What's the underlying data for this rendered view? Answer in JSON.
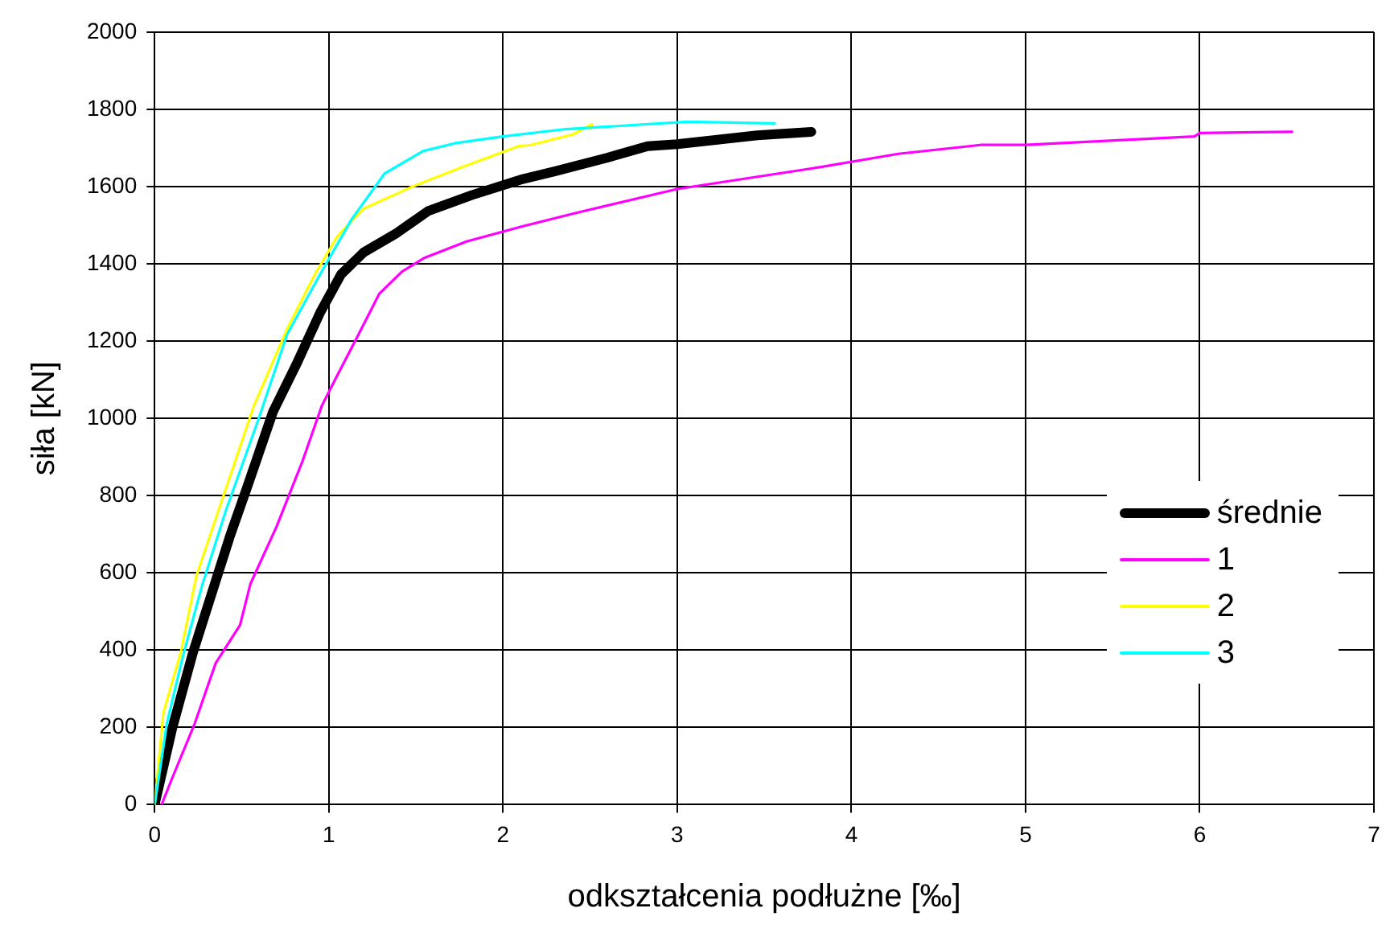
{
  "chart_data": {
    "type": "line",
    "xlabel": "odkształcenia podłużne [‰]",
    "ylabel": "siła [kN]",
    "xlim": [
      0,
      7
    ],
    "xticks": [
      0,
      1,
      2,
      3,
      4,
      5,
      6,
      7
    ],
    "ylim": [
      0,
      2000
    ],
    "yticks": [
      0,
      200,
      400,
      600,
      800,
      1000,
      1200,
      1400,
      1600,
      1800,
      2000
    ],
    "grid": true,
    "legend": "bottom right",
    "marker": "none",
    "line_style": "solid",
    "series": [
      {
        "name": "średnie",
        "color": "#000000",
        "x": [
          0,
          0.1,
          0.22,
          0.32,
          0.43,
          0.54,
          0.68,
          0.82,
          0.95,
          1.07,
          1.2,
          1.39,
          1.57,
          1.82,
          2.1,
          2.3,
          2.6,
          2.83,
          3.0,
          3.46,
          3.77
        ],
        "values": [
          0,
          196,
          394,
          536,
          692,
          834,
          1018,
          1146,
          1274,
          1373,
          1430,
          1480,
          1537,
          1578,
          1618,
          1640,
          1675,
          1705,
          1710,
          1733,
          1742
        ]
      },
      {
        "name": "1",
        "color": "#ff00ff",
        "x": [
          0.04,
          0.1,
          0.23,
          0.35,
          0.49,
          0.55,
          0.7,
          0.85,
          0.96,
          1.04,
          1.17,
          1.29,
          1.42,
          1.55,
          1.79,
          2.11,
          2.4,
          3.0,
          3.77,
          4.27,
          4.74,
          5.0,
          5.97,
          6.0,
          6.53
        ],
        "values": [
          0,
          68,
          210,
          366,
          465,
          572,
          720,
          891,
          1033,
          1104,
          1217,
          1323,
          1380,
          1416,
          1458,
          1497,
          1530,
          1594,
          1647,
          1685,
          1708,
          1708,
          1730,
          1739,
          1742
        ]
      },
      {
        "name": "2",
        "color": "#ffff00",
        "x": [
          0,
          0.05,
          0.15,
          0.24,
          0.4,
          0.57,
          0.76,
          0.92,
          1.05,
          1.2,
          1.48,
          1.79,
          2.09,
          2.16,
          2.4,
          2.51,
          2.5
        ],
        "values": [
          0,
          238,
          394,
          593,
          806,
          1033,
          1231,
          1373,
          1472,
          1543,
          1600,
          1655,
          1705,
          1708,
          1735,
          1761,
          1750
        ]
      },
      {
        "name": "3",
        "color": "#00ffff",
        "x": [
          0,
          0.07,
          0.16,
          0.27,
          0.41,
          0.59,
          0.76,
          0.95,
          1.13,
          1.32,
          1.54,
          1.73,
          2.0,
          2.36,
          3.06,
          3.56
        ],
        "values": [
          0,
          210,
          380,
          564,
          763,
          990,
          1217,
          1373,
          1515,
          1634,
          1692,
          1713,
          1730,
          1749,
          1768,
          1764
        ]
      }
    ]
  }
}
